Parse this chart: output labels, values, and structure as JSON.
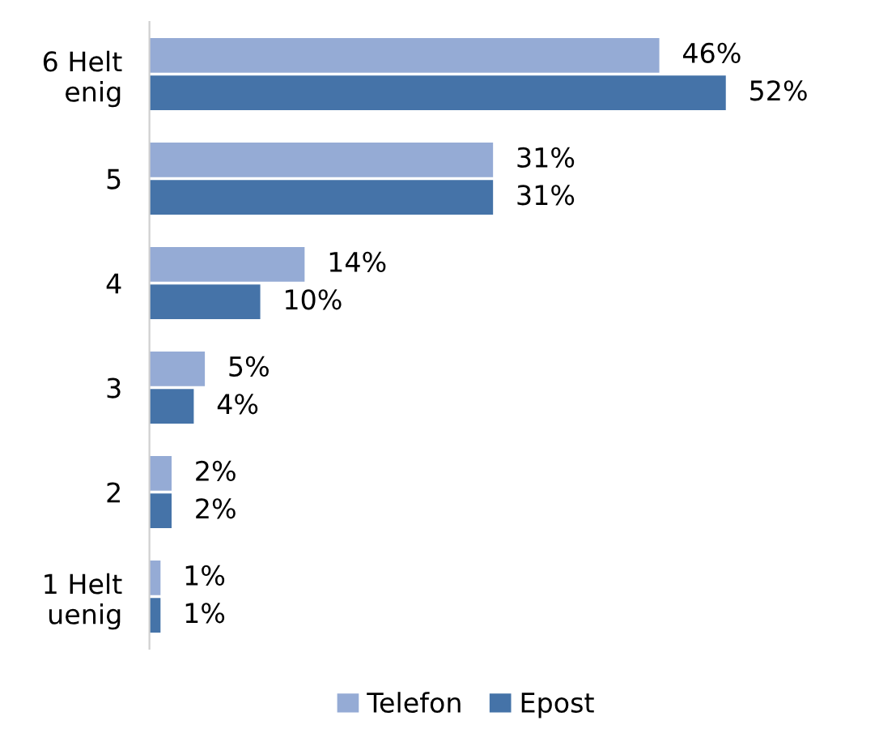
{
  "chart_data": {
    "type": "bar",
    "orientation": "horizontal",
    "categories": [
      "6 Helt\nenig",
      "5",
      "4",
      "3",
      "2",
      "1 Helt\nuenig"
    ],
    "series": [
      {
        "name": "Telefon",
        "color": "#95abd5",
        "values": [
          46,
          31,
          14,
          5,
          2,
          1
        ],
        "value_labels": [
          "46%",
          "31%",
          "14%",
          "5%",
          "2%",
          "1%"
        ]
      },
      {
        "name": "Epost",
        "color": "#4573a8",
        "values": [
          52,
          31,
          10,
          4,
          2,
          1
        ],
        "value_labels": [
          "52%",
          "31%",
          "10%",
          "4%",
          "2%",
          "1%"
        ]
      }
    ],
    "tick_labels": "y",
    "grid": false,
    "legend": "bottom"
  }
}
